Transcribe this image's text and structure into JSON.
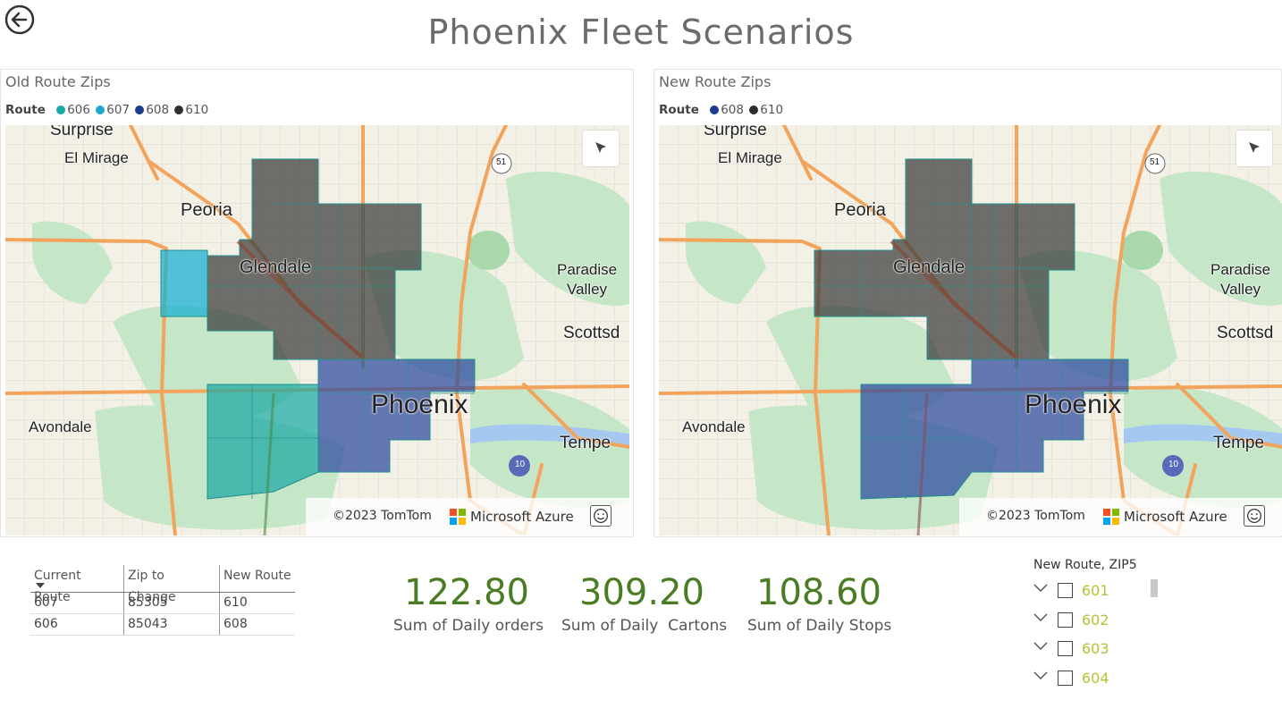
{
  "page": {
    "title": "Phoenix Fleet Scenarios",
    "back_icon": "arrow-left-circle-icon"
  },
  "colors": {
    "route_606": "#1ba9a5",
    "route_607": "#1aa7cc",
    "route_608": "#193c8c",
    "route_610": "#2e2e2e",
    "kpi": "#4a7d23",
    "slicer_label": "#b5c232"
  },
  "old_map": {
    "title": "Old Route Zips",
    "legend_title": "Route",
    "legend": [
      {
        "label": "606",
        "color": "#1ba9a5"
      },
      {
        "label": "607",
        "color": "#1aa7cc"
      },
      {
        "label": "608",
        "color": "#193c8c"
      },
      {
        "label": "610",
        "color": "#2e2e2e"
      }
    ],
    "copyright": "©2023 TomTom",
    "provider": "Microsoft Azure",
    "labels": {
      "surprise": "Surprise",
      "el_mirage": "El Mirage",
      "peoria": "Peoria",
      "glendale": "Glendale",
      "paradise": "Paradise",
      "valley": "Valley",
      "scottsdale": "Scottsd",
      "phoenix": "Phoenix",
      "avondale": "Avondale",
      "tempe": "Tempe",
      "hwy51": "51",
      "i10": "10"
    }
  },
  "new_map": {
    "title": "New Route Zips",
    "legend_title": "Route",
    "legend": [
      {
        "label": "608",
        "color": "#193c8c"
      },
      {
        "label": "610",
        "color": "#2e2e2e"
      }
    ],
    "copyright": "©2023 TomTom",
    "provider": "Microsoft Azure",
    "labels": {
      "surprise": "Surprise",
      "el_mirage": "El Mirage",
      "peoria": "Peoria",
      "glendale": "Glendale",
      "paradise": "Paradise",
      "valley": "Valley",
      "scottsdale": "Scottsd",
      "phoenix": "Phoenix",
      "avondale": "Avondale",
      "tempe": "Tempe",
      "hwy51": "51",
      "i10": "10"
    }
  },
  "table": {
    "columns": [
      "Current Route",
      "Zip to Change",
      "New Route"
    ],
    "rows": [
      [
        "607",
        "85305",
        "610"
      ],
      [
        "606",
        "85043",
        "608"
      ]
    ]
  },
  "kpis": [
    {
      "value": "122.80",
      "label": "Sum of Daily orders"
    },
    {
      "value": "309.20",
      "label": "Sum of Daily  Cartons"
    },
    {
      "value": "108.60",
      "label": "Sum of Daily Stops"
    }
  ],
  "slicer": {
    "title": "New Route, ZIP5",
    "items": [
      "601",
      "602",
      "603",
      "604"
    ]
  }
}
